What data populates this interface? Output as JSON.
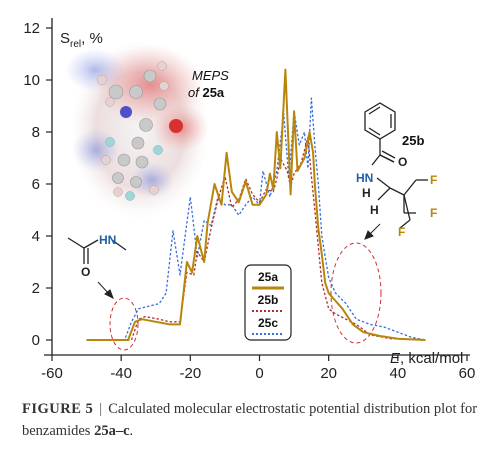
{
  "chart_data": {
    "type": "line",
    "xlim": [
      -60,
      60
    ],
    "ylim": [
      0,
      12
    ],
    "x_ticks": [
      "-60",
      "-40",
      "-20",
      "0",
      "20",
      "40",
      "60"
    ],
    "y_ticks": [
      "0",
      "2",
      "4",
      "6",
      "8",
      "10",
      "12"
    ],
    "xlabel": "E, kcal/mol",
    "ylabel": "S_rel, %",
    "ylabel_main": "S",
    "ylabel_sub": "rel",
    "ylabel_unit": ", %",
    "xlabel_var": "E",
    "xlabel_unit": ", kcal/mol",
    "legend_position": "center",
    "series": [
      {
        "name": "25a",
        "color": "#b8860b",
        "style": "solid",
        "points": [
          [
            -50,
            0
          ],
          [
            -38,
            0
          ],
          [
            -36,
            0.7
          ],
          [
            -34,
            0.8
          ],
          [
            -30,
            0.7
          ],
          [
            -26,
            0.6
          ],
          [
            -23,
            0.6
          ],
          [
            -21,
            3.0
          ],
          [
            -19.5,
            2.6
          ],
          [
            -18,
            4.0
          ],
          [
            -16,
            3.0
          ],
          [
            -15,
            4.5
          ],
          [
            -13,
            6.0
          ],
          [
            -11,
            5.2
          ],
          [
            -9.5,
            7.2
          ],
          [
            -8,
            5.7
          ],
          [
            -6,
            5.3
          ],
          [
            -4,
            6.1
          ],
          [
            -2,
            5.2
          ],
          [
            0,
            5.2
          ],
          [
            2,
            5.6
          ],
          [
            3,
            6.4
          ],
          [
            4,
            5.8
          ],
          [
            5,
            8.0
          ],
          [
            6,
            6.6
          ],
          [
            7.5,
            10.4
          ],
          [
            9,
            5.6
          ],
          [
            10,
            8.8
          ],
          [
            11,
            6.5
          ],
          [
            13,
            7.0
          ],
          [
            14.5,
            8.0
          ],
          [
            15.5,
            7.2
          ],
          [
            16,
            6.0
          ],
          [
            17,
            4.3
          ],
          [
            18,
            3.3
          ],
          [
            19,
            2.2
          ],
          [
            20,
            1.8
          ],
          [
            22,
            1.5
          ],
          [
            24,
            1.2
          ],
          [
            27,
            0.6
          ],
          [
            30,
            0.3
          ],
          [
            35,
            0.15
          ],
          [
            40,
            0.05
          ],
          [
            48,
            0
          ]
        ]
      },
      {
        "name": "25b",
        "color": "#b03030",
        "style": "dotted",
        "points": [
          [
            -50,
            0
          ],
          [
            -37,
            0
          ],
          [
            -35,
            0.8
          ],
          [
            -33,
            0.9
          ],
          [
            -29,
            0.8
          ],
          [
            -26,
            0.7
          ],
          [
            -23,
            0.7
          ],
          [
            -21,
            2.6
          ],
          [
            -19,
            2.5
          ],
          [
            -18,
            3.4
          ],
          [
            -16,
            3.0
          ],
          [
            -14,
            4.3
          ],
          [
            -12,
            5.4
          ],
          [
            -10,
            6.3
          ],
          [
            -8,
            5.1
          ],
          [
            -6,
            5.4
          ],
          [
            -4,
            6.2
          ],
          [
            -2,
            5.6
          ],
          [
            0,
            5.3
          ],
          [
            2,
            5.8
          ],
          [
            4,
            5.7
          ],
          [
            5,
            6.2
          ],
          [
            6,
            7.0
          ],
          [
            8,
            6.5
          ],
          [
            9,
            5.9
          ],
          [
            10,
            6.4
          ],
          [
            12,
            6.8
          ],
          [
            14,
            7.8
          ],
          [
            15,
            6.3
          ],
          [
            16,
            5.0
          ],
          [
            17,
            3.6
          ],
          [
            18,
            2.2
          ],
          [
            20,
            1.2
          ],
          [
            22,
            1.0
          ],
          [
            25,
            0.8
          ],
          [
            28,
            0.6
          ],
          [
            32,
            0.2
          ],
          [
            38,
            0.05
          ],
          [
            48,
            0
          ]
        ]
      },
      {
        "name": "25c",
        "color": "#3a6fd8",
        "style": "dotted",
        "points": [
          [
            -50,
            0
          ],
          [
            -39,
            0
          ],
          [
            -37,
            0.7
          ],
          [
            -35,
            1.2
          ],
          [
            -32,
            1.3
          ],
          [
            -29,
            1.4
          ],
          [
            -27,
            1.8
          ],
          [
            -25,
            4.2
          ],
          [
            -23,
            2.5
          ],
          [
            -20,
            5.5
          ],
          [
            -18,
            3.2
          ],
          [
            -16,
            4.6
          ],
          [
            -14,
            4.4
          ],
          [
            -12,
            5.5
          ],
          [
            -10,
            5.2
          ],
          [
            -8,
            5.2
          ],
          [
            -6,
            4.8
          ],
          [
            -4,
            5.2
          ],
          [
            -2,
            5.5
          ],
          [
            0,
            5.2
          ],
          [
            1,
            6.5
          ],
          [
            3,
            5.5
          ],
          [
            5,
            6.5
          ],
          [
            7,
            8.7
          ],
          [
            8.5,
            6.2
          ],
          [
            10,
            8.8
          ],
          [
            11.5,
            7.5
          ],
          [
            13,
            8.0
          ],
          [
            14,
            6.6
          ],
          [
            15,
            9.3
          ],
          [
            16,
            7.5
          ],
          [
            17,
            6.0
          ],
          [
            18,
            4.0
          ],
          [
            19,
            3.2
          ],
          [
            20,
            2.4
          ],
          [
            22,
            1.8
          ],
          [
            25,
            1.4
          ],
          [
            28,
            0.8
          ],
          [
            32,
            0.6
          ],
          [
            36,
            0.5
          ],
          [
            40,
            0.3
          ],
          [
            44,
            0.1
          ],
          [
            48,
            0
          ]
        ]
      }
    ]
  },
  "annotations": {
    "meps_line1": "MEPS",
    "meps_line2_prefix": "of ",
    "meps_line2_bold": "25a",
    "label_25b": "25b",
    "acetamide_HN": "HN",
    "acetamide_O": "O",
    "b_O": "O",
    "b_HN": "HN",
    "b_H1": "H",
    "b_H2": "H",
    "b_F1": "F",
    "b_F2": "F",
    "b_F3": "F"
  },
  "legend": {
    "items": [
      {
        "label": "25a",
        "color": "#b8860b",
        "style": "solid"
      },
      {
        "label": "25b",
        "color": "#b03030",
        "style": "dotted"
      },
      {
        "label": "25c",
        "color": "#3a6fd8",
        "style": "dotted"
      }
    ]
  },
  "caption": {
    "label": "FIGURE 5",
    "separator": "|",
    "text_part1": "Calculated molecular electrostatic potential distribution plot for benzamides ",
    "text_bold": "25a–c",
    "text_part2": "."
  }
}
